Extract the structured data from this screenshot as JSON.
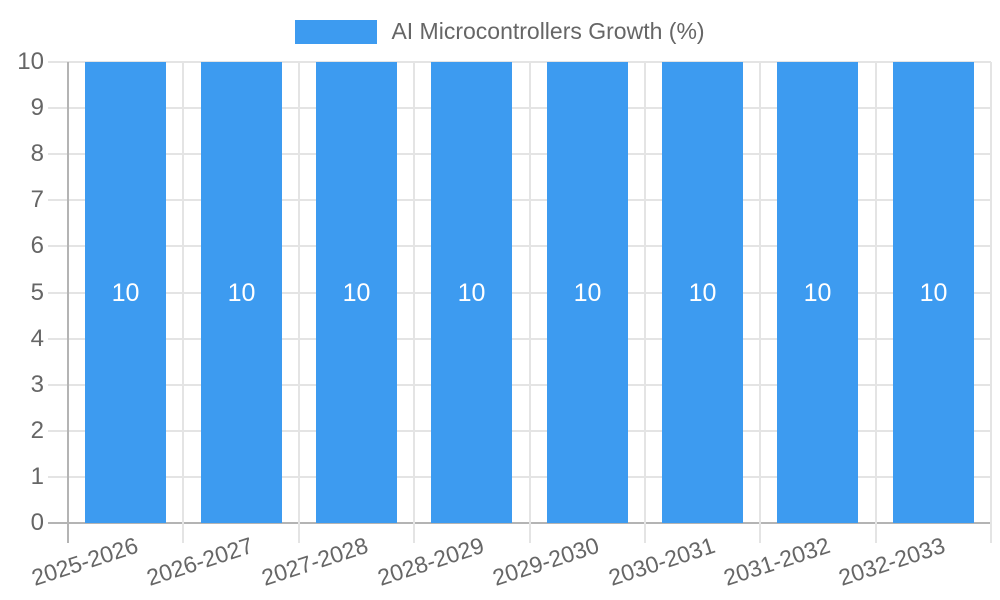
{
  "legend": {
    "label": "AI Microcontrollers Growth (%)"
  },
  "colors": {
    "bar": "#3d9bf0",
    "grid": "#e4e4e4",
    "axis": "#b4b4b4",
    "text": "#666666",
    "data_label": "#ffffff",
    "background": "#ffffff"
  },
  "chart_data": {
    "type": "bar",
    "title": "",
    "xlabel": "",
    "ylabel": "",
    "legend_position": "top",
    "grid": true,
    "categories": [
      "2025-2026",
      "2026-2027",
      "2027-2028",
      "2028-2029",
      "2029-2030",
      "2030-2031",
      "2031-2032",
      "2032-2033"
    ],
    "series": [
      {
        "name": "AI Microcontrollers Growth (%)",
        "color": "#3d9bf0",
        "values": [
          10,
          10,
          10,
          10,
          10,
          10,
          10,
          10
        ]
      }
    ],
    "bar_value_labels": [
      "10",
      "10",
      "10",
      "10",
      "10",
      "10",
      "10",
      "10"
    ],
    "ylim": [
      0,
      10
    ],
    "yticks": [
      0,
      1,
      2,
      3,
      4,
      5,
      6,
      7,
      8,
      9,
      10
    ]
  }
}
